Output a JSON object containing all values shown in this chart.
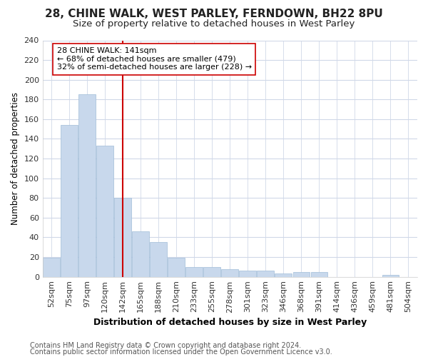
{
  "title1": "28, CHINE WALK, WEST PARLEY, FERNDOWN, BH22 8PU",
  "title2": "Size of property relative to detached houses in West Parley",
  "xlabel": "Distribution of detached houses by size in West Parley",
  "ylabel": "Number of detached properties",
  "bar_color": "#c8d8ec",
  "bar_edge_color": "#a0bcd8",
  "categories": [
    "52sqm",
    "75sqm",
    "97sqm",
    "120sqm",
    "142sqm",
    "165sqm",
    "188sqm",
    "210sqm",
    "233sqm",
    "255sqm",
    "278sqm",
    "301sqm",
    "323sqm",
    "346sqm",
    "368sqm",
    "391sqm",
    "414sqm",
    "436sqm",
    "459sqm",
    "481sqm",
    "504sqm"
  ],
  "values": [
    19,
    154,
    185,
    133,
    80,
    46,
    35,
    19,
    10,
    10,
    8,
    6,
    6,
    3,
    5,
    5,
    0,
    0,
    0,
    2,
    0
  ],
  "vline_x": 4,
  "vline_color": "#cc0000",
  "annotation_line1": "28 CHINE WALK: 141sqm",
  "annotation_line2": "← 68% of detached houses are smaller (479)",
  "annotation_line3": "32% of semi-detached houses are larger (228) →",
  "annotation_box_color": "#ffffff",
  "annotation_box_edge": "#cc0000",
  "ylim": [
    0,
    240
  ],
  "yticks": [
    0,
    20,
    40,
    60,
    80,
    100,
    120,
    140,
    160,
    180,
    200,
    220,
    240
  ],
  "footer1": "Contains HM Land Registry data © Crown copyright and database right 2024.",
  "footer2": "Contains public sector information licensed under the Open Government Licence v3.0.",
  "bg_color": "#ffffff",
  "plot_bg_color": "#ffffff",
  "title1_fontsize": 11,
  "title2_fontsize": 9.5,
  "xlabel_fontsize": 9,
  "ylabel_fontsize": 8.5,
  "tick_fontsize": 8,
  "annotation_fontsize": 8,
  "footer_fontsize": 7
}
